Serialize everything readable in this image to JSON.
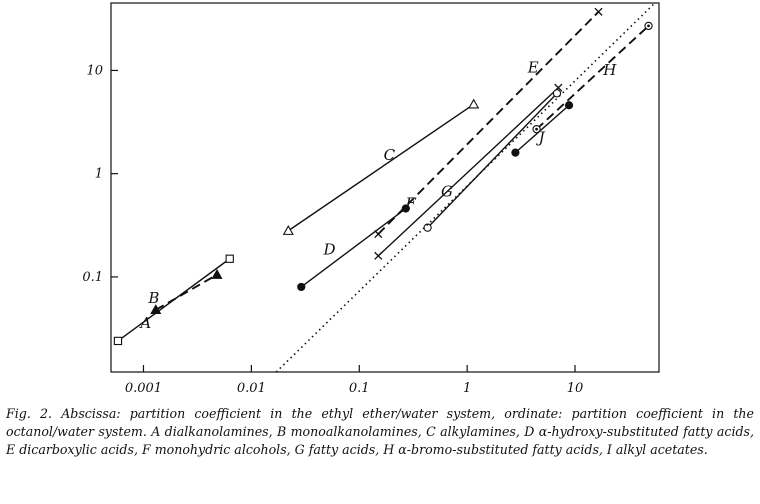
{
  "caption": {
    "title": "Fig. 2.",
    "text": "Abscissa: partition coefficient in the ethyl ether/water system, ordinate: partition coefficient in the octanol/water system. A dialkanolamines, B monoalkanolamines, C alkylamines, D α-hydroxy-substituted fatty acids, E dicarboxylic acids, F monohydric alcohols, G fatty acids, H α-bromo-substituted fatty acids, I alkyl acetates."
  },
  "chart_data": {
    "type": "line",
    "title": "",
    "xlabel": "",
    "ylabel": "",
    "x_scale": "log",
    "y_scale": "log",
    "xlim": [
      0.0005,
      60
    ],
    "ylim": [
      0.012,
      45
    ],
    "grid": false,
    "x_ticks": [
      {
        "value": 0.001,
        "label": "0.001"
      },
      {
        "value": 0.01,
        "label": "0.01"
      },
      {
        "value": 0.1,
        "label": "0.1"
      },
      {
        "value": 1,
        "label": "1"
      },
      {
        "value": 10,
        "label": "10"
      }
    ],
    "y_ticks": [
      {
        "value": 0.1,
        "label": "0.1"
      },
      {
        "value": 1,
        "label": "1"
      },
      {
        "value": 10,
        "label": "10"
      }
    ],
    "series": [
      {
        "name": "A",
        "style": "solid",
        "marker": "square",
        "points": [
          [
            0.00058,
            0.024
          ],
          [
            0.0063,
            0.15
          ]
        ],
        "label_at": [
          0.00105,
          0.032
        ]
      },
      {
        "name": "B",
        "style": "dashed",
        "marker": "triangle-filled",
        "points": [
          [
            0.0013,
            0.048
          ],
          [
            0.0048,
            0.105
          ]
        ],
        "label_at": [
          0.00125,
          0.056
        ]
      },
      {
        "name": "C",
        "style": "solid",
        "marker": "triangle",
        "points": [
          [
            0.022,
            0.28
          ],
          [
            1.15,
            4.7
          ]
        ],
        "label_at": [
          0.19,
          1.35
        ]
      },
      {
        "name": "D",
        "style": "solid",
        "marker": "circle-filled",
        "points": [
          [
            0.029,
            0.08
          ],
          [
            0.27,
            0.46
          ]
        ],
        "label_at": [
          0.053,
          0.165
        ]
      },
      {
        "name": "E",
        "style": "dashed",
        "marker": "cross",
        "points": [
          [
            0.15,
            0.26
          ],
          [
            16.5,
            37
          ]
        ],
        "label_at": [
          4.1,
          9.5
        ]
      },
      {
        "name": "F",
        "style": "solid",
        "marker": "cross",
        "points": [
          [
            0.15,
            0.16
          ],
          [
            7.0,
            6.8
          ]
        ],
        "label_at": [
          0.3,
          0.46
        ]
      },
      {
        "name": "G",
        "style": "solid",
        "marker": "circle",
        "points": [
          [
            0.43,
            0.3
          ],
          [
            6.8,
            6.0
          ]
        ],
        "label_at": [
          0.65,
          0.6
        ]
      },
      {
        "name": "H",
        "style": "dashed",
        "marker": "circle-dot",
        "points": [
          [
            4.4,
            2.7
          ],
          [
            48,
            27
          ]
        ],
        "label_at": [
          21,
          9.0
        ]
      },
      {
        "name": "J",
        "style": "solid",
        "marker": "circle-filled",
        "points": [
          [
            2.8,
            1.6
          ],
          [
            8.8,
            4.6
          ]
        ],
        "label_at": [
          4.9,
          2.0
        ]
      },
      {
        "name": "",
        "style": "dotted",
        "marker": "none",
        "points": [
          [
            0.017,
            0.012
          ],
          [
            55,
            45
          ]
        ]
      }
    ]
  }
}
